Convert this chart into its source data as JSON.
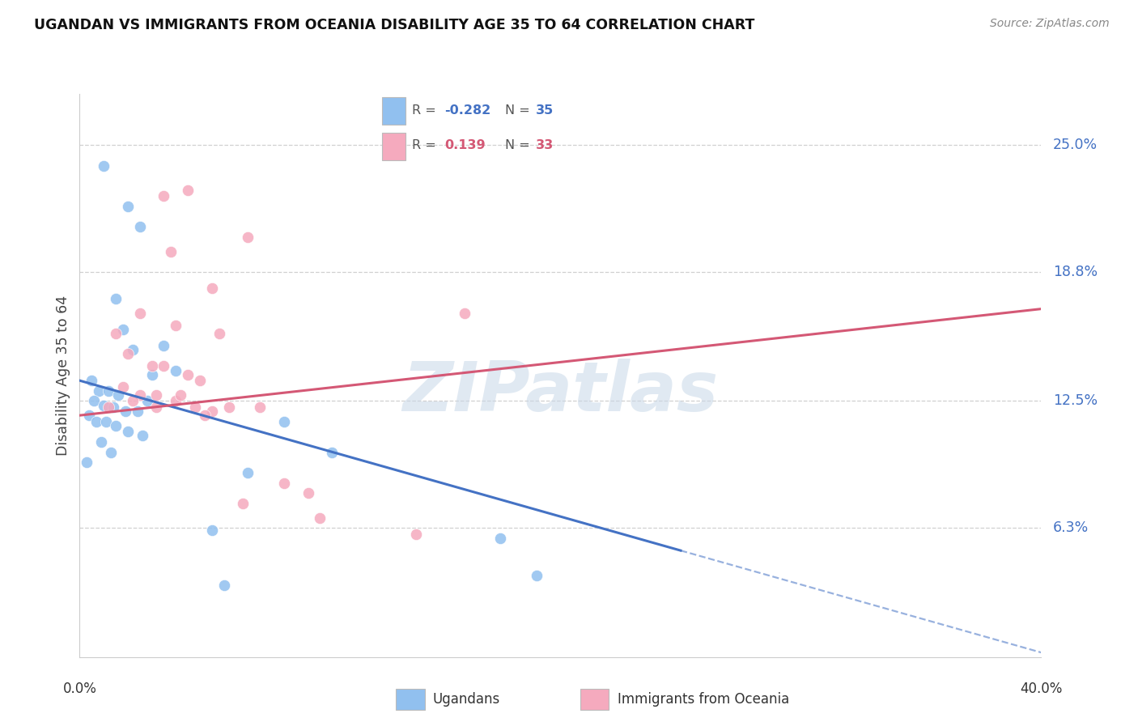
{
  "title": "UGANDAN VS IMMIGRANTS FROM OCEANIA DISABILITY AGE 35 TO 64 CORRELATION CHART",
  "source": "Source: ZipAtlas.com",
  "ylabel": "Disability Age 35 to 64",
  "ytick_labels": [
    "6.3%",
    "12.5%",
    "18.8%",
    "25.0%"
  ],
  "ytick_values": [
    6.3,
    12.5,
    18.8,
    25.0
  ],
  "xlim": [
    0.0,
    40.0
  ],
  "ylim": [
    0.0,
    27.5
  ],
  "legend_label1": "Ugandans",
  "legend_label2": "Immigrants from Oceania",
  "r1_val": "-0.282",
  "n1_val": "35",
  "r2_val": "0.139",
  "n2_val": "33",
  "color_blue": "#91C0EF",
  "color_pink": "#F5AABE",
  "line_color_blue": "#4472C4",
  "line_color_pink": "#D45875",
  "watermark_text": "ZIPatlas",
  "blue_line_x0": 0.0,
  "blue_line_y0": 13.5,
  "blue_line_x1": 25.0,
  "blue_line_y1": 5.2,
  "blue_line_solid_end": 25.0,
  "pink_line_x0": 0.0,
  "pink_line_y0": 11.8,
  "pink_line_x1": 40.0,
  "pink_line_y1": 17.0,
  "blue_x": [
    1.0,
    2.0,
    2.5,
    1.5,
    1.8,
    3.5,
    4.0,
    2.2,
    3.0,
    0.5,
    0.8,
    1.2,
    1.6,
    2.8,
    0.6,
    1.0,
    1.4,
    1.9,
    2.4,
    0.4,
    0.7,
    1.1,
    1.5,
    2.0,
    2.6,
    0.9,
    1.3,
    0.3,
    8.5,
    10.5,
    17.5,
    7.0,
    5.5,
    19.0,
    6.0
  ],
  "blue_y": [
    24.0,
    22.0,
    21.0,
    17.5,
    16.0,
    15.2,
    14.0,
    15.0,
    13.8,
    13.5,
    13.0,
    13.0,
    12.8,
    12.5,
    12.5,
    12.3,
    12.2,
    12.0,
    12.0,
    11.8,
    11.5,
    11.5,
    11.3,
    11.0,
    10.8,
    10.5,
    10.0,
    9.5,
    11.5,
    10.0,
    5.8,
    9.0,
    6.2,
    4.0,
    3.5
  ],
  "pink_x": [
    3.5,
    4.5,
    3.8,
    7.0,
    5.5,
    2.5,
    4.0,
    5.8,
    1.5,
    2.0,
    3.0,
    3.5,
    4.5,
    5.0,
    1.8,
    2.5,
    3.2,
    4.0,
    4.8,
    5.5,
    1.2,
    2.2,
    3.2,
    4.2,
    5.2,
    6.2,
    16.0,
    9.5,
    10.0,
    14.0,
    7.5,
    8.5,
    6.8
  ],
  "pink_y": [
    22.5,
    22.8,
    19.8,
    20.5,
    18.0,
    16.8,
    16.2,
    15.8,
    15.8,
    14.8,
    14.2,
    14.2,
    13.8,
    13.5,
    13.2,
    12.8,
    12.8,
    12.5,
    12.2,
    12.0,
    12.2,
    12.5,
    12.2,
    12.8,
    11.8,
    12.2,
    16.8,
    8.0,
    6.8,
    6.0,
    12.2,
    8.5,
    7.5
  ]
}
